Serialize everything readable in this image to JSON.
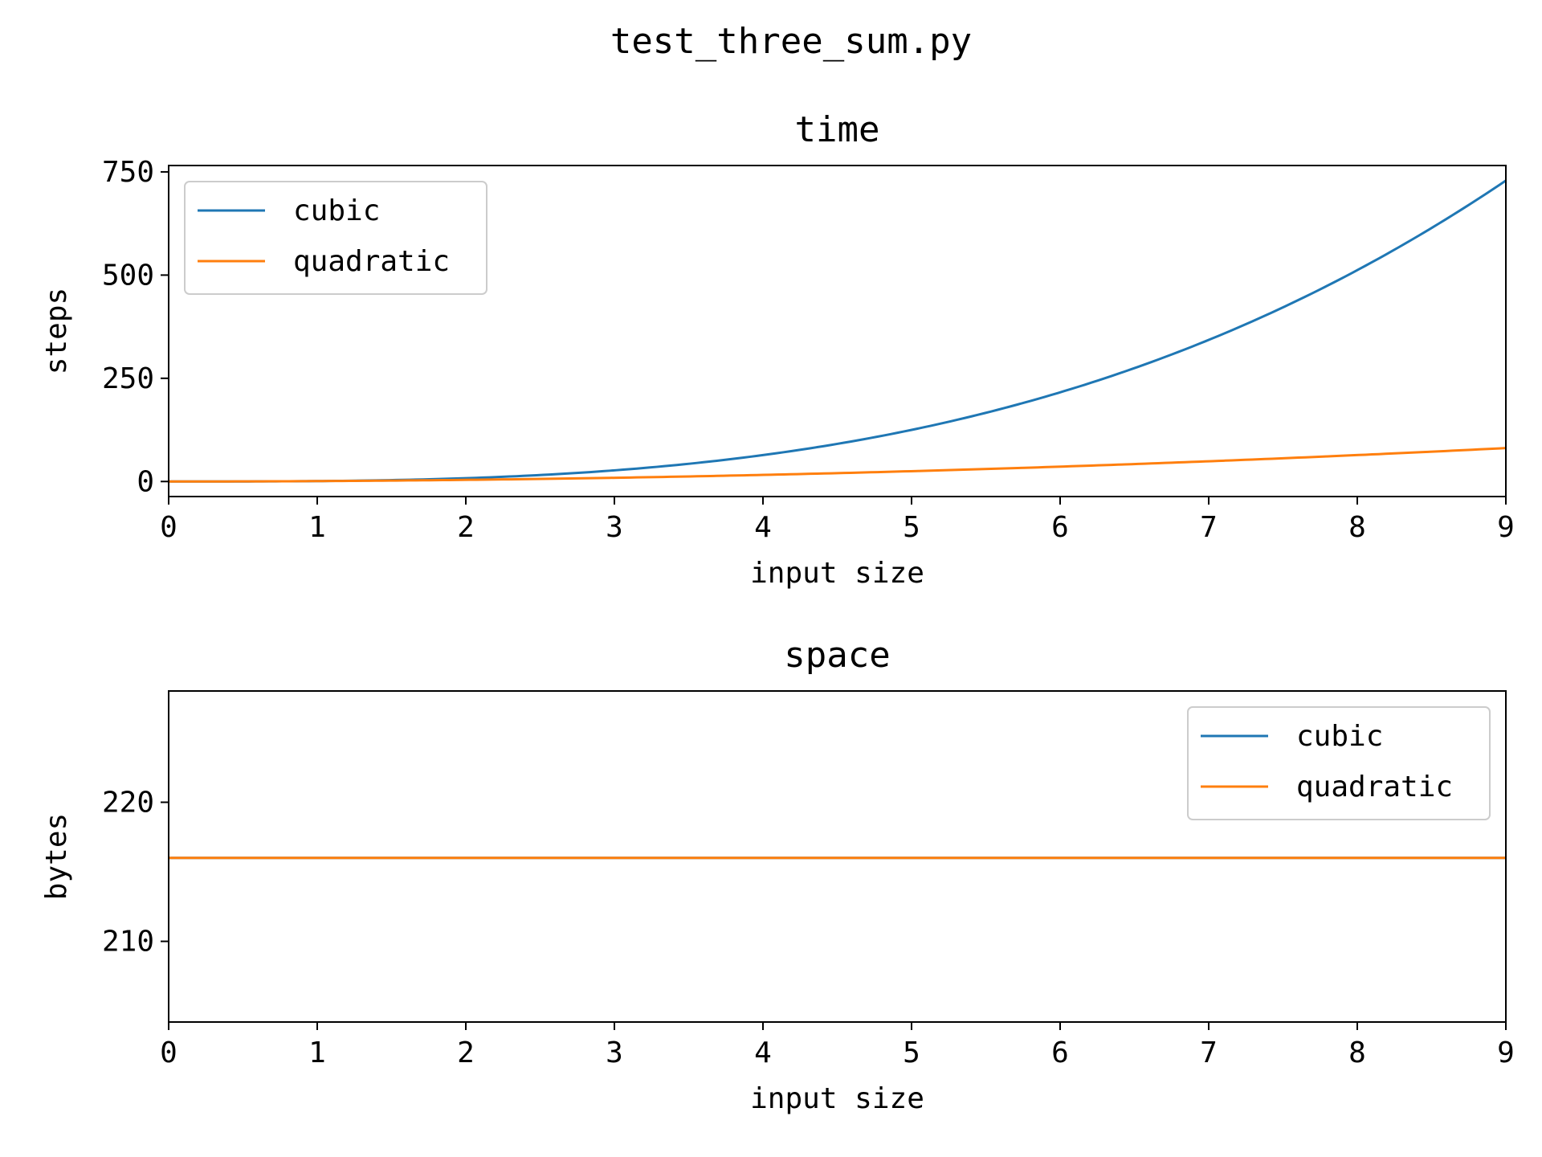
{
  "figure": {
    "suptitle": "test_three_sum.py"
  },
  "colors": {
    "cubic": "#1f77b4",
    "quadratic": "#ff7f0e"
  },
  "chart_data": [
    {
      "type": "line",
      "title": "time",
      "xlabel": "input size",
      "ylabel": "steps",
      "xlim": [
        0,
        9
      ],
      "ylim": [
        -36.45,
        765.45
      ],
      "xticks": [
        0,
        1,
        2,
        3,
        4,
        5,
        6,
        7,
        8,
        9
      ],
      "yticks": [
        0,
        250,
        500,
        750
      ],
      "grid": false,
      "legend": "upper left",
      "x": [
        0,
        1,
        2,
        3,
        4,
        5,
        6,
        7,
        8,
        9
      ],
      "series": [
        {
          "name": "cubic",
          "values": [
            0,
            1,
            8,
            27,
            64,
            125,
            216,
            343,
            512,
            729
          ]
        },
        {
          "name": "quadratic",
          "values": [
            0,
            1,
            4,
            9,
            16,
            25,
            36,
            49,
            64,
            81
          ]
        }
      ]
    },
    {
      "type": "line",
      "title": "space",
      "xlabel": "input size",
      "ylabel": "bytes",
      "xlim": [
        0,
        9
      ],
      "ylim": [
        204.2,
        228
      ],
      "xticks": [
        0,
        1,
        2,
        3,
        4,
        5,
        6,
        7,
        8,
        9
      ],
      "yticks": [
        210,
        220
      ],
      "grid": false,
      "legend": "upper right",
      "x": [
        0,
        1,
        2,
        3,
        4,
        5,
        6,
        7,
        8,
        9
      ],
      "series": [
        {
          "name": "cubic",
          "values": [
            216,
            216,
            216,
            216,
            216,
            216,
            216,
            216,
            216,
            216
          ]
        },
        {
          "name": "quadratic",
          "values": [
            216,
            216,
            216,
            216,
            216,
            216,
            216,
            216,
            216,
            216
          ]
        }
      ]
    }
  ]
}
